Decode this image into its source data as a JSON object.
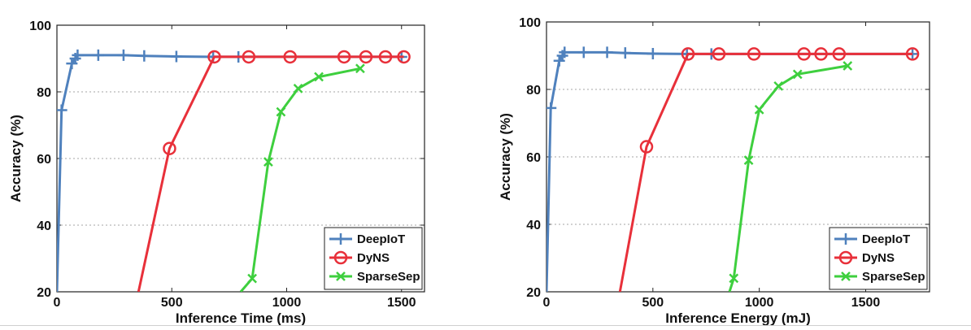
{
  "chart_data": [
    {
      "type": "line",
      "xlabel": "Inference Time (ms)",
      "ylabel": "Accuracy (%)",
      "xlim": [
        0,
        1600
      ],
      "ylim": [
        20,
        100
      ],
      "xticks": [
        "0",
        "500",
        "1000",
        "1500"
      ],
      "yticks": [
        "20",
        "40",
        "60",
        "80",
        "100"
      ],
      "grid": "y-dotted",
      "legend_position": "bottom-right",
      "series": [
        {
          "name": "DeepIoT",
          "color": "#4f81bd",
          "marker": "plus",
          "x": [
            0,
            20,
            65,
            80,
            90,
            180,
            290,
            380,
            520,
            680,
            790,
            1500
          ],
          "y": [
            20,
            74.5,
            88.5,
            90,
            91,
            91,
            91,
            90.8,
            90.6,
            90.5,
            90.5,
            90.5
          ]
        },
        {
          "name": "DyNS",
          "color": "#e8303a",
          "marker": "circle",
          "x": [
            355,
            490,
            685,
            835,
            1015,
            1250,
            1345,
            1430,
            1510
          ],
          "y": [
            20,
            63,
            90.5,
            90.5,
            90.5,
            90.5,
            90.5,
            90.5,
            90.5
          ]
        },
        {
          "name": "SparseSep",
          "color": "#3ecf3e",
          "marker": "x",
          "x": [
            800,
            850,
            920,
            975,
            1050,
            1140,
            1320
          ],
          "y": [
            20,
            24,
            59,
            74,
            81,
            84.5,
            87
          ]
        }
      ]
    },
    {
      "type": "line",
      "xlabel": "Inference Energy (mJ)",
      "ylabel": "Accuracy (%)",
      "xlim": [
        0,
        1800
      ],
      "ylim": [
        20,
        100
      ],
      "xticks": [
        "0",
        "500",
        "1000",
        "1500"
      ],
      "yticks": [
        "20",
        "40",
        "60",
        "80",
        "100"
      ],
      "grid": "y-dotted",
      "legend_position": "bottom-right",
      "series": [
        {
          "name": "DeepIoT",
          "color": "#4f81bd",
          "marker": "plus",
          "x": [
            0,
            20,
            60,
            75,
            85,
            175,
            285,
            370,
            500,
            660,
            775,
            1720
          ],
          "y": [
            20,
            74.5,
            88.5,
            90,
            91,
            91,
            91,
            90.8,
            90.6,
            90.5,
            90.5,
            90.5
          ]
        },
        {
          "name": "DyNS",
          "color": "#e8303a",
          "marker": "circle",
          "x": [
            345,
            470,
            665,
            810,
            975,
            1210,
            1290,
            1375,
            1720
          ],
          "y": [
            20,
            63,
            90.5,
            90.5,
            90.5,
            90.5,
            90.5,
            90.5,
            90.5
          ]
        },
        {
          "name": "SparseSep",
          "color": "#3ecf3e",
          "marker": "x",
          "x": [
            860,
            880,
            950,
            1000,
            1090,
            1180,
            1415
          ],
          "y": [
            20,
            24,
            59,
            74,
            81,
            84.5,
            87
          ]
        }
      ]
    }
  ]
}
